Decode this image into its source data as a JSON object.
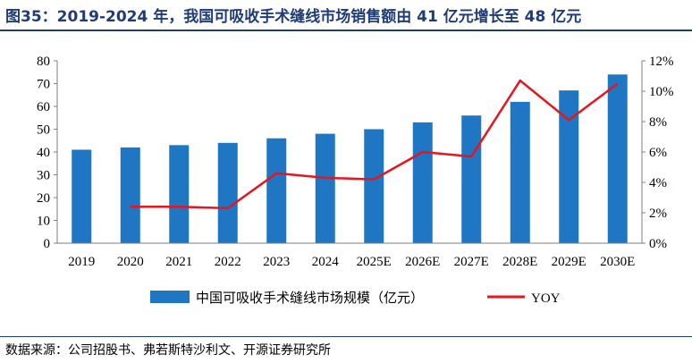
{
  "header": {
    "title": "图35：2019-2024 年，我国可吸收手术缝线市场销售额由 41 亿元增长至 48 亿元"
  },
  "footer": {
    "source": "数据来源：公司招股书、弗若斯特沙利文、开源证券研究所"
  },
  "chart_data": {
    "type": "bar",
    "categories": [
      "2019",
      "2020",
      "2021",
      "2022",
      "2023",
      "2024",
      "2025E",
      "2026E",
      "2027E",
      "2028E",
      "2029E",
      "2030E"
    ],
    "series": [
      {
        "name": "中国可吸收手术缝线市场规模（亿元）",
        "type": "bar",
        "axis": "left",
        "color": "#1f77c4",
        "values": [
          41,
          42,
          43,
          44,
          46,
          48,
          50,
          53,
          56,
          62,
          67,
          74
        ]
      },
      {
        "name": "YOY",
        "type": "line",
        "axis": "right",
        "color": "#e8141e",
        "values": [
          null,
          2.4,
          2.4,
          2.3,
          4.6,
          4.3,
          4.2,
          6.0,
          5.7,
          10.7,
          8.1,
          10.5
        ]
      }
    ],
    "y_left": {
      "min": 0,
      "max": 80,
      "step": 10
    },
    "y_right": {
      "min": 0,
      "max": 12,
      "step": 2,
      "suffix": "%"
    },
    "grid": false,
    "legend_position": "bottom"
  }
}
